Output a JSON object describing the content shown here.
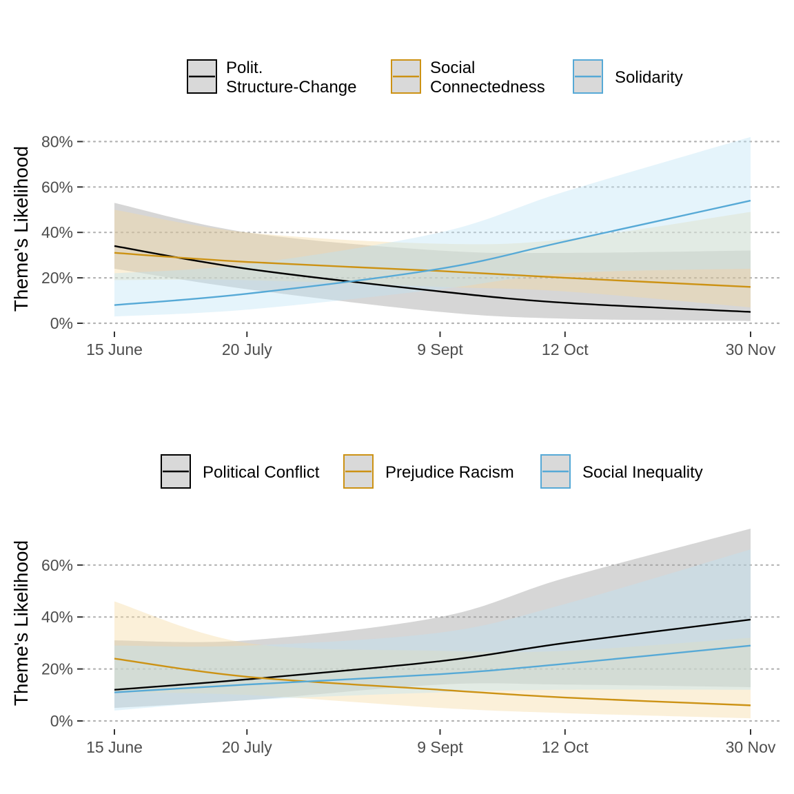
{
  "chart_data": [
    {
      "type": "line",
      "ylabel": "Theme's Likelihood",
      "ylim": [
        0,
        0.8
      ],
      "yticks": [
        0,
        0.2,
        0.4,
        0.6,
        0.8
      ],
      "ytick_labels": [
        "0%",
        "20%",
        "40%",
        "60%",
        "80%"
      ],
      "xlim": [
        "2020-06-15",
        "2020-11-30"
      ],
      "xticks": [
        "2020-06-15",
        "2020-07-20",
        "2020-09-09",
        "2020-10-12",
        "2020-11-30"
      ],
      "xtick_labels": [
        "15 June",
        "20 July",
        "9 Sept",
        "12 Oct",
        "30 Nov"
      ],
      "grid": "horizontal dotted",
      "legend_position": "top",
      "x": [
        "2020-06-15",
        "2020-07-20",
        "2020-09-09",
        "2020-10-12",
        "2020-11-30"
      ],
      "series": [
        {
          "name": "Polit.\nStructure-Change",
          "legend_lines": [
            "Polit.",
            "Structure-Change"
          ],
          "color": "#000000",
          "fill": "#999999",
          "values": [
            0.34,
            0.24,
            0.14,
            0.09,
            0.05
          ],
          "lower": [
            0.24,
            0.15,
            0.05,
            0.02,
            0.01
          ],
          "upper": [
            0.53,
            0.4,
            0.32,
            0.31,
            0.32
          ]
        },
        {
          "name": "Social\nConnectedness",
          "legend_lines": [
            "Social",
            "Connectedness"
          ],
          "color": "#E69F00",
          "line": "#CC9214",
          "fill": "#F6D9A0",
          "values": [
            0.31,
            0.27,
            0.23,
            0.2,
            0.16
          ],
          "lower": [
            0.19,
            0.19,
            0.16,
            0.14,
            0.07
          ],
          "upper": [
            0.5,
            0.4,
            0.35,
            0.37,
            0.49
          ]
        },
        {
          "name": "Solidarity",
          "legend_lines": [
            "Solidarity"
          ],
          "color": "#56B4E9",
          "line": "#56A9D6",
          "fill": "#BFE3F5",
          "values": [
            0.08,
            0.13,
            0.24,
            0.36,
            0.54
          ],
          "lower": [
            0.03,
            0.06,
            0.15,
            0.22,
            0.24
          ],
          "upper": [
            0.22,
            0.26,
            0.4,
            0.58,
            0.82
          ]
        }
      ]
    },
    {
      "type": "line",
      "ylabel": "Theme's Likelihood",
      "ylim": [
        0,
        0.7
      ],
      "yticks": [
        0,
        0.2,
        0.4,
        0.6
      ],
      "ytick_labels": [
        "0%",
        "20%",
        "40%",
        "60%"
      ],
      "xlim": [
        "2020-06-15",
        "2020-11-30"
      ],
      "xticks": [
        "2020-06-15",
        "2020-07-20",
        "2020-09-09",
        "2020-10-12",
        "2020-11-30"
      ],
      "xtick_labels": [
        "15 June",
        "20 July",
        "9 Sept",
        "12 Oct",
        "30 Nov"
      ],
      "grid": "horizontal dotted",
      "legend_position": "top",
      "x": [
        "2020-06-15",
        "2020-07-20",
        "2020-09-09",
        "2020-10-12",
        "2020-11-30"
      ],
      "series": [
        {
          "name": "Political Conflict",
          "legend_lines": [
            "Political Conflict"
          ],
          "color": "#000000",
          "fill": "#999999",
          "values": [
            0.12,
            0.16,
            0.23,
            0.3,
            0.39
          ],
          "lower": [
            0.05,
            0.08,
            0.14,
            0.14,
            0.13
          ],
          "upper": [
            0.31,
            0.31,
            0.4,
            0.55,
            0.74
          ]
        },
        {
          "name": "Prejudice Racism",
          "legend_lines": [
            "Prejudice Racism"
          ],
          "color": "#E69F00",
          "line": "#CC9214",
          "fill": "#F6D9A0",
          "values": [
            0.24,
            0.17,
            0.12,
            0.09,
            0.06
          ],
          "lower": [
            0.11,
            0.1,
            0.05,
            0.03,
            0.01
          ],
          "upper": [
            0.46,
            0.3,
            0.27,
            0.27,
            0.32
          ]
        },
        {
          "name": "Social Inequality",
          "legend_lines": [
            "Social Inequality"
          ],
          "color": "#56B4E9",
          "line": "#56A9D6",
          "fill": "#BFE3F5",
          "values": [
            0.11,
            0.14,
            0.18,
            0.22,
            0.29
          ],
          "lower": [
            0.04,
            0.08,
            0.11,
            0.12,
            0.12
          ],
          "upper": [
            0.29,
            0.29,
            0.34,
            0.45,
            0.66
          ]
        }
      ]
    }
  ]
}
